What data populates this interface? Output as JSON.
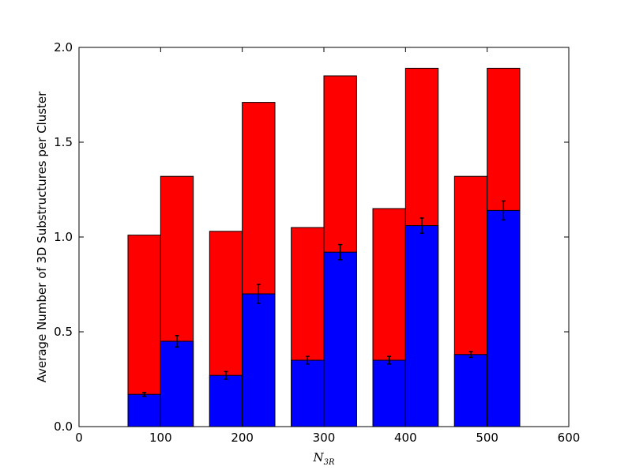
{
  "chart_data": {
    "type": "bar",
    "stacked": false,
    "xlabel": "N",
    "xlabel_subscript": "3R",
    "ylabel": "Average Number of 3D Substructures per Cluster",
    "xlim": [
      0,
      600
    ],
    "ylim": [
      0,
      2.0
    ],
    "xticks": [
      0,
      100,
      200,
      300,
      400,
      500,
      600
    ],
    "yticks": [
      0.0,
      0.5,
      1.0,
      1.5,
      2.0
    ],
    "xtick_labels": [
      "0",
      "100",
      "200",
      "300",
      "400",
      "500",
      "600"
    ],
    "ytick_labels": [
      "0.0",
      "0.5",
      "1.0",
      "1.5",
      "2.0"
    ],
    "bar_width": 40,
    "bars": [
      {
        "x_left": 60,
        "total": 1.01,
        "blue": 0.17,
        "err": 0.01
      },
      {
        "x_left": 100,
        "total": 1.32,
        "blue": 0.45,
        "err": 0.03
      },
      {
        "x_left": 160,
        "total": 1.03,
        "blue": 0.27,
        "err": 0.02
      },
      {
        "x_left": 200,
        "total": 1.71,
        "blue": 0.7,
        "err": 0.05
      },
      {
        "x_left": 260,
        "total": 1.05,
        "blue": 0.35,
        "err": 0.02
      },
      {
        "x_left": 300,
        "total": 1.85,
        "blue": 0.92,
        "err": 0.04
      },
      {
        "x_left": 360,
        "total": 1.15,
        "blue": 0.35,
        "err": 0.02
      },
      {
        "x_left": 400,
        "total": 1.89,
        "blue": 1.06,
        "err": 0.04
      },
      {
        "x_left": 460,
        "total": 1.32,
        "blue": 0.38,
        "err": 0.015
      },
      {
        "x_left": 500,
        "total": 1.89,
        "blue": 1.14,
        "err": 0.05
      }
    ],
    "colors": {
      "total": "#ff0000",
      "blue": "#0000ff",
      "edge": "#000000"
    }
  }
}
